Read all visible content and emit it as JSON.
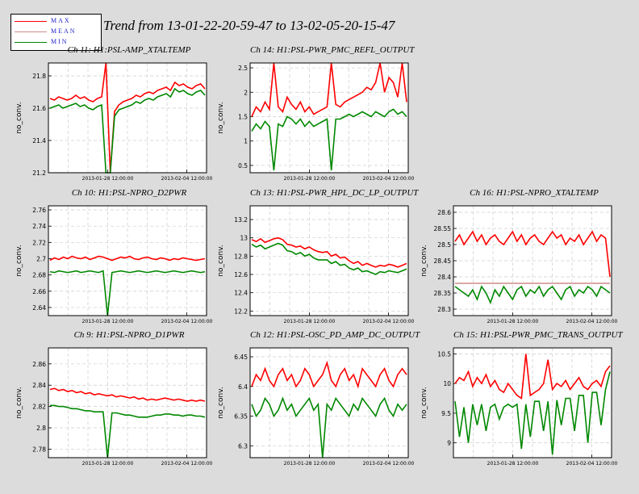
{
  "title": "Trend from 13-01-22-20-59-47 to 13-02-05-20-15-47",
  "colors": {
    "max": "#ff0000",
    "mean": "#d08a8a",
    "min": "#008800",
    "background": "#dcdcdc",
    "plot": "#ffffff",
    "grid": "#cccccc"
  },
  "legend": [
    {
      "label": "MAX",
      "color": "#ff0000"
    },
    {
      "label": "MEAN",
      "color": "#d08a8a"
    },
    {
      "label": "MIN",
      "color": "#008800"
    }
  ],
  "chart_data": [
    {
      "type": "line",
      "title": "Ch 11: H1:PSL-AMP_XTALTEMP",
      "ylabel": "no_conv.",
      "yticks": [
        "21.2",
        "21.4",
        "21.6",
        "21.8"
      ],
      "ylim": [
        21.2,
        21.88
      ],
      "xticks": [
        "2013-01-28 12:00:00",
        "2013-02-04 12:00:00"
      ],
      "series": [
        {
          "name": "MAX",
          "values": [
            21.66,
            21.65,
            21.67,
            21.66,
            21.65,
            21.66,
            21.68,
            21.66,
            21.67,
            21.65,
            21.64,
            21.66,
            21.67,
            21.88,
            21.2,
            21.58,
            21.62,
            21.64,
            21.65,
            21.66,
            21.68,
            21.67,
            21.69,
            21.7,
            21.69,
            21.71,
            21.72,
            21.73,
            21.71,
            21.76,
            21.74,
            21.75,
            21.73,
            21.72,
            21.74,
            21.75,
            21.72
          ]
        },
        {
          "name": "MIN",
          "values": [
            21.6,
            21.61,
            21.62,
            21.6,
            21.61,
            21.62,
            21.63,
            21.61,
            21.62,
            21.6,
            21.59,
            21.61,
            21.62,
            21.2,
            21.2,
            21.55,
            21.59,
            21.6,
            21.61,
            21.62,
            21.64,
            21.63,
            21.65,
            21.66,
            21.65,
            21.67,
            21.68,
            21.69,
            21.67,
            21.72,
            21.7,
            21.71,
            21.69,
            21.68,
            21.7,
            21.71,
            21.68
          ]
        }
      ]
    },
    {
      "type": "line",
      "title": "Ch 14: H1:PSL-PWR_PMC_REFL_OUTPUT",
      "ylabel": "no_conv.",
      "yticks": [
        "0.5",
        "1",
        "1.5",
        "2",
        "2.5"
      ],
      "ylim": [
        0.35,
        2.6
      ],
      "xticks": [
        "2013-01-28 12:00:00",
        "2013-02-04 12:00:00"
      ],
      "series": [
        {
          "name": "MAX",
          "values": [
            1.5,
            1.7,
            1.6,
            1.8,
            1.65,
            2.6,
            1.7,
            1.6,
            1.9,
            1.75,
            1.65,
            1.8,
            1.6,
            1.7,
            1.55,
            1.6,
            1.65,
            1.7,
            2.6,
            1.75,
            1.7,
            1.8,
            1.85,
            1.9,
            1.95,
            2.0,
            2.1,
            2.05,
            2.2,
            2.6,
            2.0,
            2.3,
            2.2,
            1.9,
            2.6,
            1.8
          ]
        },
        {
          "name": "MIN",
          "values": [
            1.2,
            1.35,
            1.25,
            1.4,
            1.3,
            0.4,
            1.35,
            1.3,
            1.5,
            1.45,
            1.35,
            1.45,
            1.3,
            1.4,
            1.3,
            1.35,
            1.4,
            1.45,
            0.4,
            1.45,
            1.45,
            1.5,
            1.55,
            1.5,
            1.55,
            1.6,
            1.55,
            1.5,
            1.6,
            1.55,
            1.5,
            1.6,
            1.65,
            1.55,
            1.6,
            1.5
          ]
        }
      ]
    },
    {
      "type": "line",
      "title": "Ch 10: H1:PSL-NPRO_D2PWR",
      "ylabel": "no_conv.",
      "yticks": [
        "2.64",
        "2.66",
        "2.68",
        "2.7",
        "2.72",
        "2.74",
        "2.76"
      ],
      "ylim": [
        2.63,
        2.765
      ],
      "xticks": [
        "2013-01-28 12:00:00",
        "2013-02-04 12:00:00"
      ],
      "series": [
        {
          "name": "MAX",
          "values": [
            2.698,
            2.701,
            2.699,
            2.702,
            2.7,
            2.703,
            2.701,
            2.7,
            2.702,
            2.699,
            2.701,
            2.703,
            2.702,
            2.7,
            2.698,
            2.7,
            2.702,
            2.701,
            2.703,
            2.7,
            2.699,
            2.701,
            2.702,
            2.7,
            2.699,
            2.701,
            2.7,
            2.698,
            2.7,
            2.699,
            2.701,
            2.7,
            2.699,
            2.698,
            2.699,
            2.7
          ]
        },
        {
          "name": "MIN",
          "values": [
            2.684,
            2.683,
            2.685,
            2.684,
            2.683,
            2.684,
            2.685,
            2.683,
            2.684,
            2.685,
            2.684,
            2.683,
            2.685,
            2.63,
            2.683,
            2.684,
            2.685,
            2.684,
            2.683,
            2.684,
            2.685,
            2.684,
            2.683,
            2.684,
            2.685,
            2.684,
            2.683,
            2.684,
            2.685,
            2.684,
            2.683,
            2.684,
            2.685,
            2.684,
            2.683,
            2.684
          ]
        }
      ]
    },
    {
      "type": "line",
      "title": "Ch 13: H1:PSL-PWR_HPL_DC_LP_OUTPUT",
      "ylabel": "no_conv.",
      "yticks": [
        "12.2",
        "12.4",
        "12.6",
        "12.8",
        "13",
        "13.2"
      ],
      "ylim": [
        12.15,
        13.35
      ],
      "xticks": [
        "2013-01-28 12:00:00",
        "2013-02-04 12:00:00"
      ],
      "series": [
        {
          "name": "MAX",
          "values": [
            12.98,
            12.96,
            12.99,
            12.95,
            12.97,
            12.99,
            13.0,
            12.98,
            12.93,
            12.92,
            12.9,
            12.91,
            12.88,
            12.9,
            12.87,
            12.85,
            12.84,
            12.85,
            12.8,
            12.82,
            12.78,
            12.79,
            12.75,
            12.72,
            12.74,
            12.7,
            12.72,
            12.7,
            12.68,
            12.7,
            12.69,
            12.71,
            12.7,
            12.68,
            12.7,
            12.72
          ]
        },
        {
          "name": "MIN",
          "values": [
            12.93,
            12.9,
            12.92,
            12.88,
            12.9,
            12.92,
            12.94,
            12.92,
            12.86,
            12.85,
            12.82,
            12.84,
            12.8,
            12.82,
            12.78,
            12.76,
            12.76,
            12.76,
            12.72,
            12.74,
            12.7,
            12.71,
            12.67,
            12.65,
            12.67,
            12.63,
            12.64,
            12.62,
            12.6,
            12.63,
            12.62,
            12.64,
            12.63,
            12.62,
            12.64,
            12.66
          ]
        }
      ]
    },
    {
      "type": "line",
      "title": "Ch 16: H1:PSL-NPRO_XTALTEMP",
      "ylabel": "no_conv.",
      "yticks": [
        "28.3",
        "28.35",
        "28.4",
        "28.45",
        "28.5",
        "28.55",
        "28.6"
      ],
      "ylim": [
        28.28,
        28.62
      ],
      "xticks": [
        "2013-01-28 12:00:00",
        "2013-02-04 12:00:00"
      ],
      "series": [
        {
          "name": "MAX",
          "values": [
            28.51,
            28.53,
            28.5,
            28.52,
            28.54,
            28.51,
            28.53,
            28.5,
            28.52,
            28.53,
            28.51,
            28.5,
            28.52,
            28.54,
            28.51,
            28.53,
            28.5,
            28.52,
            28.53,
            28.51,
            28.5,
            28.52,
            28.54,
            28.52,
            28.53,
            28.5,
            28.52,
            28.51,
            28.53,
            28.5,
            28.52,
            28.54,
            28.51,
            28.53,
            28.52,
            28.4
          ]
        },
        {
          "name": "MEAN",
          "values": [
            28.38,
            28.38,
            28.38,
            28.38,
            28.38,
            28.38,
            28.38,
            28.38,
            28.38,
            28.38,
            28.38,
            28.38,
            28.38,
            28.38,
            28.38,
            28.38,
            28.38,
            28.38,
            28.38,
            28.38,
            28.38,
            28.38,
            28.38,
            28.38,
            28.38,
            28.38,
            28.38,
            28.38,
            28.38,
            28.38,
            28.38,
            28.38,
            28.38,
            28.38,
            28.38,
            28.38
          ]
        },
        {
          "name": "MIN",
          "values": [
            28.37,
            28.36,
            28.35,
            28.34,
            28.36,
            28.33,
            28.37,
            28.35,
            28.32,
            28.36,
            28.34,
            28.37,
            28.35,
            28.33,
            28.36,
            28.37,
            28.34,
            28.36,
            28.35,
            28.37,
            28.34,
            28.36,
            28.37,
            28.35,
            28.33,
            28.36,
            28.37,
            28.34,
            28.36,
            28.35,
            28.37,
            28.36,
            28.34,
            28.37,
            28.36,
            28.35
          ]
        }
      ]
    },
    {
      "type": "line",
      "title": "Ch 9: H1:PSL-NPRO_D1PWR",
      "ylabel": "no_conv.",
      "yticks": [
        "2.78",
        "2.8",
        "2.82",
        "2.84",
        "2.86"
      ],
      "ylim": [
        2.772,
        2.875
      ],
      "xticks": [
        "2013-01-28 12:00:00",
        "2013-02-04 12:00:00"
      ],
      "series": [
        {
          "name": "MAX",
          "values": [
            2.836,
            2.837,
            2.835,
            2.836,
            2.834,
            2.835,
            2.833,
            2.834,
            2.832,
            2.833,
            2.831,
            2.832,
            2.831,
            2.83,
            2.831,
            2.829,
            2.83,
            2.829,
            2.828,
            2.829,
            2.827,
            2.828,
            2.826,
            2.827,
            2.826,
            2.827,
            2.828,
            2.827,
            2.826,
            2.827,
            2.826,
            2.825,
            2.826,
            2.825,
            2.826,
            2.825
          ]
        },
        {
          "name": "MIN",
          "values": [
            2.821,
            2.821,
            2.82,
            2.82,
            2.819,
            2.818,
            2.818,
            2.817,
            2.816,
            2.816,
            2.815,
            2.815,
            2.815,
            2.772,
            2.814,
            2.814,
            2.813,
            2.812,
            2.812,
            2.811,
            2.81,
            2.81,
            2.81,
            2.811,
            2.812,
            2.812,
            2.813,
            2.813,
            2.812,
            2.812,
            2.811,
            2.812,
            2.812,
            2.811,
            2.811,
            2.81
          ]
        }
      ]
    },
    {
      "type": "line",
      "title": "Ch 12: H1:PSL-OSC_PD_AMP_DC_OUTPUT",
      "ylabel": "no_conv.",
      "yticks": [
        "6.3",
        "6.35",
        "6.4",
        "6.45"
      ],
      "ylim": [
        6.28,
        6.465
      ],
      "xticks": [
        "2013-01-28 12:00:00",
        "2013-02-04 12:00:00"
      ],
      "series": [
        {
          "name": "MAX",
          "values": [
            6.4,
            6.42,
            6.41,
            6.43,
            6.41,
            6.4,
            6.42,
            6.43,
            6.41,
            6.42,
            6.4,
            6.41,
            6.43,
            6.42,
            6.4,
            6.41,
            6.42,
            6.44,
            6.41,
            6.4,
            6.42,
            6.43,
            6.41,
            6.42,
            6.4,
            6.43,
            6.42,
            6.41,
            6.4,
            6.42,
            6.43,
            6.41,
            6.4,
            6.42,
            6.43,
            6.42
          ]
        },
        {
          "name": "MIN",
          "values": [
            6.37,
            6.35,
            6.36,
            6.38,
            6.37,
            6.35,
            6.36,
            6.38,
            6.36,
            6.37,
            6.35,
            6.36,
            6.37,
            6.38,
            6.36,
            6.37,
            6.28,
            6.37,
            6.36,
            6.38,
            6.37,
            6.36,
            6.35,
            6.37,
            6.36,
            6.38,
            6.37,
            6.36,
            6.35,
            6.37,
            6.38,
            6.36,
            6.35,
            6.37,
            6.36,
            6.37
          ]
        }
      ]
    },
    {
      "type": "line",
      "title": "Ch 15: H1:PSL-PWR_PMC_TRANS_OUTPUT",
      "ylabel": "no_conv.",
      "yticks": [
        "9",
        "9.5",
        "10",
        "10.5"
      ],
      "ylim": [
        8.75,
        10.6
      ],
      "xticks": [
        "2013-01-28 12:00:00",
        "2013-02-04 12:00:00"
      ],
      "series": [
        {
          "name": "MAX",
          "values": [
            10.0,
            10.1,
            10.05,
            10.2,
            9.95,
            10.1,
            10.0,
            10.15,
            9.95,
            10.05,
            9.9,
            9.85,
            10.0,
            9.9,
            9.8,
            9.75,
            10.5,
            9.8,
            9.85,
            9.9,
            10.0,
            10.4,
            9.9,
            10.0,
            9.95,
            10.05,
            9.9,
            10.0,
            10.1,
            9.95,
            9.9,
            10.0,
            10.05,
            9.95,
            10.2,
            10.3
          ]
        },
        {
          "name": "MIN",
          "values": [
            9.7,
            9.1,
            9.6,
            9.0,
            9.65,
            9.3,
            9.65,
            9.2,
            9.6,
            9.65,
            9.4,
            9.6,
            9.65,
            9.6,
            9.65,
            8.9,
            9.65,
            9.1,
            9.7,
            9.7,
            9.2,
            9.7,
            8.8,
            9.72,
            9.3,
            9.75,
            9.75,
            9.2,
            9.8,
            9.8,
            9.0,
            9.85,
            9.85,
            9.3,
            9.9,
            10.2
          ]
        }
      ]
    }
  ]
}
